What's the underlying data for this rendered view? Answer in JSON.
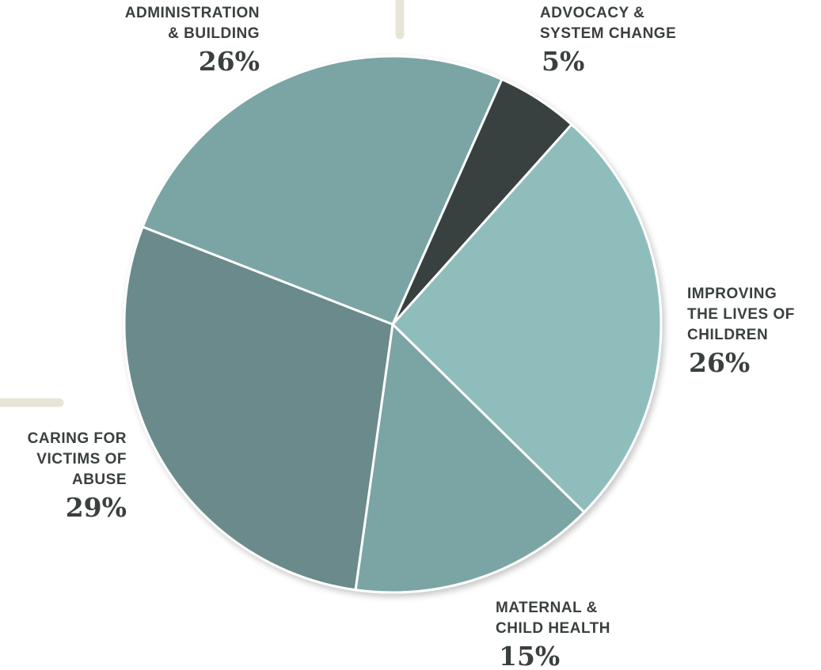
{
  "chart_data": {
    "type": "pie",
    "slices": [
      {
        "id": "advocacy",
        "label": "ADVOCACY &\nSYSTEM CHANGE",
        "value": 5,
        "value_label": "5%",
        "color": "#383f3f"
      },
      {
        "id": "improving",
        "label": "IMPROVING\nTHE LIVES OF\nCHILDREN",
        "value": 26,
        "value_label": "26%",
        "color": "#8fbdbc"
      },
      {
        "id": "maternal",
        "label": "MATERNAL &\nCHILD HEALTH",
        "value": 15,
        "value_label": "15%",
        "color": "#7aa5a4"
      },
      {
        "id": "caring",
        "label": "CARING FOR\nVICTIMS OF\nABUSE",
        "value": 29,
        "value_label": "29%",
        "color": "#6a8a8b"
      },
      {
        "id": "admin",
        "label": "ADMINISTRATION\n& BUILDING",
        "value": 26,
        "value_label": "26%",
        "color": "#7aa5a4"
      }
    ],
    "decor_color": "#e8e4d6"
  }
}
